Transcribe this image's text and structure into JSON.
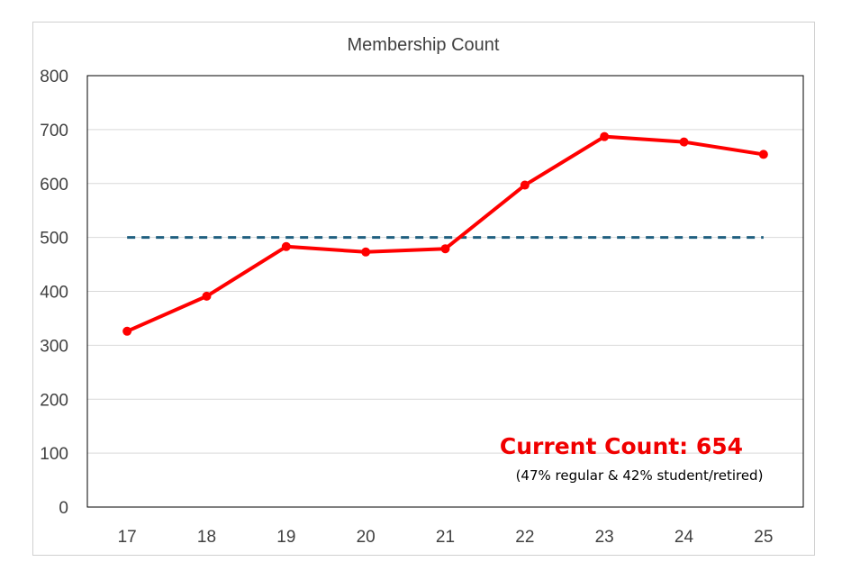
{
  "chart_data": {
    "type": "line",
    "title": "Membership Count",
    "xlabel": "",
    "ylabel": "",
    "categories": [
      "17",
      "18",
      "19",
      "20",
      "21",
      "22",
      "23",
      "24",
      "25"
    ],
    "ylim": [
      0,
      800
    ],
    "yticks": [
      0,
      100,
      200,
      300,
      400,
      500,
      600,
      700,
      800
    ],
    "grid": true,
    "legend": "none",
    "series": [
      {
        "values": [
          326,
          391,
          483,
          473,
          479,
          597,
          687,
          677,
          654
        ],
        "color": "#ff0000"
      },
      {
        "values": [
          500,
          500,
          500,
          500,
          500,
          500,
          500,
          500,
          500
        ],
        "color": "#1f5f7f",
        "style": "dashed"
      }
    ],
    "annotations": [
      {
        "text": "Current Count: 654",
        "color": "#f00000"
      },
      {
        "text": "(47% regular & 42% student/retired)",
        "color": "#000000"
      }
    ]
  }
}
